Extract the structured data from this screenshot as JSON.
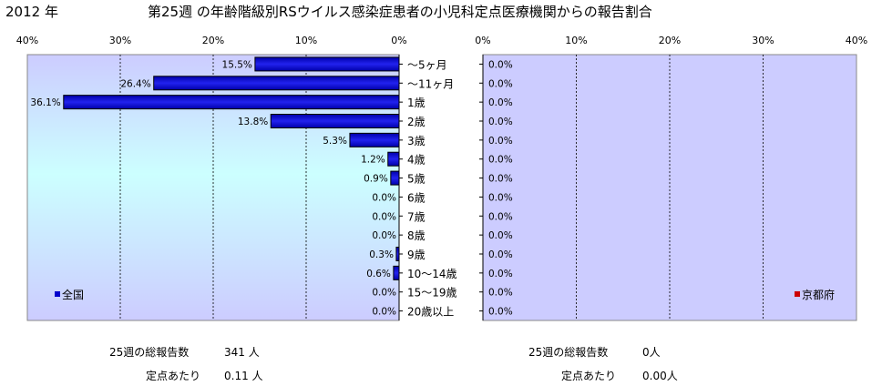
{
  "header": {
    "year_label": "2012 年",
    "title": "第25週 の年齢階級別RSウイルス感染症患者の小児科定点医療機関からの報告割合"
  },
  "chart_data": [
    {
      "type": "bar",
      "orientation": "horizontal",
      "direction": "right-to-left",
      "legend": "全国",
      "legend_placement": "bottom-left",
      "color": "#0000cc",
      "categories": [
        "～5ヶ月",
        "～11ヶ月",
        "1歳",
        "2歳",
        "3歳",
        "4歳",
        "5歳",
        "6歳",
        "7歳",
        "8歳",
        "9歳",
        "10～14歳",
        "15～19歳",
        "20歳以上"
      ],
      "values": [
        15.5,
        26.4,
        36.1,
        13.8,
        5.3,
        1.2,
        0.9,
        0.0,
        0.0,
        0.0,
        0.3,
        0.6,
        0.0,
        0.0
      ],
      "data_labels": [
        "15.5%",
        "26.4%",
        "36.1%",
        "13.8%",
        "5.3%",
        "1.2%",
        "0.9%",
        "0.0%",
        "0.0%",
        "0.0%",
        "0.3%",
        "0.6%",
        "0.0%",
        "0.0%"
      ],
      "xlim": [
        0,
        40
      ],
      "tick_labels": [
        "40%",
        "30%",
        "20%",
        "10%",
        "0%"
      ],
      "grid": true
    },
    {
      "type": "bar",
      "orientation": "horizontal",
      "direction": "left-to-right",
      "legend": "京都府",
      "legend_placement": "bottom-right",
      "color": "#cc0000",
      "categories": [
        "～5ヶ月",
        "～11ヶ月",
        "1歳",
        "2歳",
        "3歳",
        "4歳",
        "5歳",
        "6歳",
        "7歳",
        "8歳",
        "9歳",
        "10～14歳",
        "15～19歳",
        "20歳以上"
      ],
      "values": [
        0,
        0,
        0,
        0,
        0,
        0,
        0,
        0,
        0,
        0,
        0,
        0,
        0,
        0
      ],
      "data_labels": [
        "0.0%",
        "0.0%",
        "0.0%",
        "0.0%",
        "0.0%",
        "0.0%",
        "0.0%",
        "0.0%",
        "0.0%",
        "0.0%",
        "0.0%",
        "0.0%",
        "0.0%",
        "0.0%"
      ],
      "xlim": [
        0,
        40
      ],
      "tick_labels": [
        "0%",
        "10%",
        "20%",
        "30%",
        "40%"
      ],
      "grid": true
    }
  ],
  "stats": {
    "national": {
      "total_label": "25週の総報告数",
      "total_value": "341 人",
      "per_label": "定点あたり",
      "per_value": "0.11 人"
    },
    "kyoto": {
      "total_label": "25週の総報告数",
      "total_value": "0人",
      "per_label": "定点あたり",
      "per_value": "0.00人"
    }
  }
}
